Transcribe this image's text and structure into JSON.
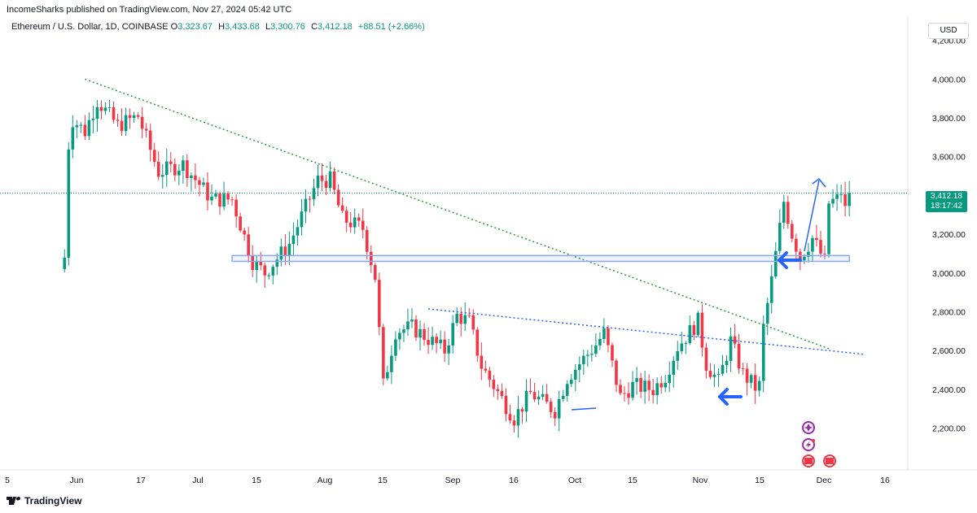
{
  "publisher_text": "IncomeSharks published on TradingView.com, Nov 27, 2024 05:42 UTC",
  "symbol": {
    "name": "Ethereum / U.S. Dollar, 1D, COINBASE",
    "o_label": "O",
    "o_value": "3,323.67",
    "h_label": "H",
    "h_value": "3,433.68",
    "l_label": "L",
    "l_value": "3,300.76",
    "c_label": "C",
    "c_value": "3,412.18",
    "change": "+88.51 (+2.66%)"
  },
  "currency": "USD",
  "last_price": {
    "price": "3,412.18",
    "countdown": "18:17:42"
  },
  "footer_brand": "TradingView",
  "colors": {
    "up": "#089981",
    "down": "#f23645",
    "trend": "#2a9d3a",
    "blue": "#2962ff",
    "zone": "#8fa8e8"
  },
  "chart_data": {
    "type": "candlestick",
    "symbol": "ETH/USD",
    "timeframe": "1D",
    "x_tick_labels": [
      "5",
      "Jun",
      "17",
      "Jul",
      "15",
      "Aug",
      "15",
      "Sep",
      "16",
      "Oct",
      "15",
      "Nov",
      "15",
      "Dec",
      "16"
    ],
    "y_tick_labels": [
      "2,200.00",
      "2,400.00",
      "2,600.00",
      "2,800.00",
      "3,000.00",
      "3,200.00",
      "3,400.00",
      "3,600.00",
      "3,800.00",
      "4,000.00",
      "4,200.00"
    ],
    "ylim": [
      2090,
      4280
    ],
    "grid": false,
    "candle_anchors_close": [
      [
        "2024-05-19",
        3080
      ],
      [
        "2024-05-20",
        3660
      ],
      [
        "2024-05-21",
        3790
      ],
      [
        "2024-05-24",
        3730
      ],
      [
        "2024-05-27",
        3890
      ],
      [
        "2024-06-01",
        3760
      ],
      [
        "2024-06-06",
        3810
      ],
      [
        "2024-06-11",
        3520
      ],
      [
        "2024-06-17",
        3560
      ],
      [
        "2024-06-24",
        3380
      ],
      [
        "2024-06-29",
        3380
      ],
      [
        "2024-07-04",
        3060
      ],
      [
        "2024-07-07",
        3000
      ],
      [
        "2024-07-13",
        3150
      ],
      [
        "2024-07-20",
        3480
      ],
      [
        "2024-07-23",
        3480
      ],
      [
        "2024-07-26",
        3280
      ],
      [
        "2024-07-31",
        3230
      ],
      [
        "2024-08-03",
        2980
      ],
      [
        "2024-08-05",
        2420
      ],
      [
        "2024-08-08",
        2700
      ],
      [
        "2024-08-12",
        2720
      ],
      [
        "2024-08-20",
        2600
      ],
      [
        "2024-08-23",
        2780
      ],
      [
        "2024-08-26",
        2750
      ],
      [
        "2024-08-29",
        2520
      ],
      [
        "2024-09-06",
        2250
      ],
      [
        "2024-09-10",
        2380
      ],
      [
        "2024-09-16",
        2290
      ],
      [
        "2024-09-19",
        2460
      ],
      [
        "2024-09-26",
        2630
      ],
      [
        "2024-09-28",
        2690
      ],
      [
        "2024-10-02",
        2360
      ],
      [
        "2024-10-05",
        2420
      ],
      [
        "2024-10-10",
        2400
      ],
      [
        "2024-10-13",
        2470
      ],
      [
        "2024-10-16",
        2620
      ],
      [
        "2024-10-21",
        2750
      ],
      [
        "2024-10-23",
        2530
      ],
      [
        "2024-10-26",
        2440
      ],
      [
        "2024-10-29",
        2650
      ],
      [
        "2024-11-01",
        2480
      ],
      [
        "2024-11-04",
        2410
      ],
      [
        "2024-11-05",
        2420
      ],
      [
        "2024-11-06",
        2720
      ],
      [
        "2024-11-08",
        2960
      ],
      [
        "2024-11-11",
        3370
      ],
      [
        "2024-11-13",
        3200
      ],
      [
        "2024-11-15",
        3080
      ],
      [
        "2024-11-18",
        3180
      ],
      [
        "2024-11-21",
        3060
      ],
      [
        "2024-11-22",
        3360
      ],
      [
        "2024-11-24",
        3380
      ],
      [
        "2024-11-25",
        3420
      ],
      [
        "2024-11-26",
        3323
      ],
      [
        "2024-11-27",
        3412
      ]
    ],
    "annotations": {
      "descending_trendline": {
        "from": [
          "2024-05-24",
          4000
        ],
        "to": [
          "2024-11-22",
          2610
        ]
      },
      "blue_dotted_trendline": {
        "from": [
          "2024-08-16",
          2815
        ],
        "to": [
          "2024-12-01",
          2580
        ]
      },
      "support_zone": {
        "from": "2024-06-29",
        "to": "2024-11-27",
        "low": 3060,
        "high": 3090
      },
      "last_price_line": 3412.18
    }
  }
}
